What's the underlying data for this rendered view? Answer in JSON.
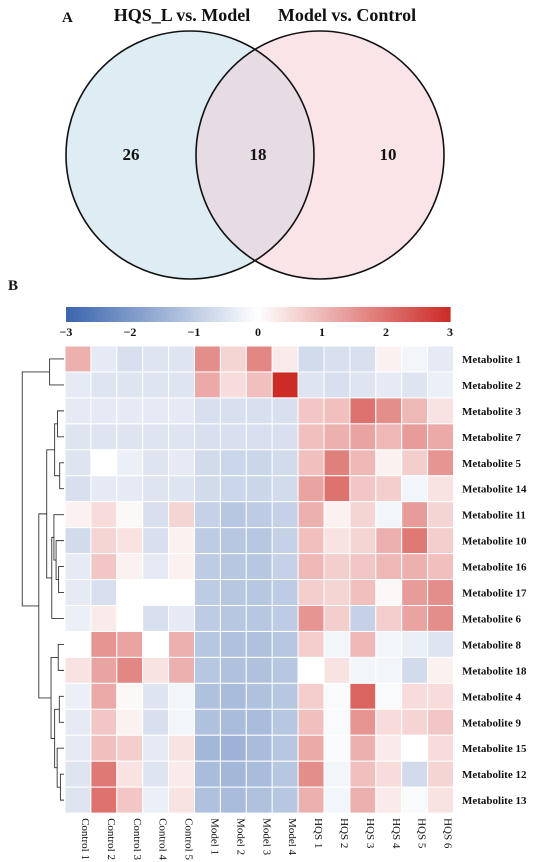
{
  "panel_labels": {
    "a": "A",
    "b": "B"
  },
  "venn": {
    "left_set": "HQS_L vs. Model",
    "right_set": "Model vs. Control",
    "left_only": "26",
    "overlap": "18",
    "right_only": "10",
    "left_color": "#deedf4",
    "right_color": "#fbe4e8",
    "overlap_color": "#e7dbe4"
  },
  "chart_data": [
    {
      "type": "venn",
      "sets": [
        "HQS_L vs. Model",
        "Model vs. Control"
      ],
      "values": {
        "left_only": 26,
        "overlap": 18,
        "right_only": 10
      }
    },
    {
      "type": "heatmap",
      "color_scale": {
        "min": -3,
        "max": 3,
        "ticks": [
          "-3",
          "-2",
          "-1",
          "0",
          "1",
          "2",
          "3"
        ],
        "low_color": "#3a64ad",
        "mid_color": "#ffffff",
        "high_color": "#cc2b26"
      },
      "columns": [
        "Control 1",
        "Control 2",
        "Control 3",
        "Control 4",
        "Control 5",
        "Model 1",
        "Model 2",
        "Model 3",
        "Model 4",
        "HQS 1",
        "HQS 2",
        "HQS 3",
        "HQS 4",
        "HQS 5",
        "HQS 6"
      ],
      "rows": [
        "Metabolite 1",
        "Metabolite 2",
        "Metabolite 3",
        "Metabolite 7",
        "Metabolite 5",
        "Metabolite 14",
        "Metabolite 11",
        "Metabolite 10",
        "Metabolite 16",
        "Metabolite 17",
        "Metabolite 6",
        "Metabolite 8",
        "Metabolite 18",
        "Metabolite 4",
        "Metabolite 9",
        "Metabolite 15",
        "Metabolite 12",
        "Metabolite 13"
      ],
      "values": [
        [
          1.1,
          -0.4,
          -0.6,
          -0.5,
          -0.5,
          1.6,
          0.6,
          1.7,
          0.3,
          -0.7,
          -0.6,
          -0.6,
          0.2,
          -0.2,
          -0.4
        ],
        [
          -0.4,
          -0.5,
          -0.5,
          -0.5,
          -0.5,
          1.2,
          0.5,
          0.9,
          3.0,
          -0.5,
          -0.6,
          -0.5,
          -0.4,
          -0.5,
          -0.3
        ],
        [
          -0.4,
          -0.4,
          -0.4,
          -0.4,
          -0.4,
          -0.6,
          -0.6,
          -0.6,
          -0.6,
          0.8,
          0.9,
          2.0,
          1.6,
          1.0,
          0.4
        ],
        [
          -0.5,
          -0.5,
          -0.5,
          -0.5,
          -0.5,
          -0.6,
          -0.6,
          -0.6,
          -0.6,
          0.9,
          1.1,
          1.3,
          1.0,
          1.4,
          1.2
        ],
        [
          -0.5,
          0.0,
          -0.3,
          -0.5,
          -0.4,
          -0.7,
          -0.8,
          -0.8,
          -0.7,
          0.9,
          1.8,
          1.0,
          0.2,
          0.7,
          1.5
        ],
        [
          -0.6,
          -0.4,
          -0.4,
          -0.5,
          -0.5,
          -0.7,
          -0.8,
          -0.8,
          -0.7,
          1.3,
          2.0,
          0.8,
          0.7,
          -0.2,
          0.4
        ],
        [
          0.2,
          0.5,
          0.1,
          -0.6,
          0.6,
          -0.9,
          -1.1,
          -1.0,
          -0.9,
          1.1,
          0.2,
          0.6,
          -0.2,
          1.4,
          0.6
        ],
        [
          -0.7,
          0.6,
          0.4,
          -0.6,
          0.2,
          -1.0,
          -1.1,
          -1.1,
          -0.9,
          0.9,
          0.4,
          0.6,
          1.1,
          1.9,
          0.7
        ],
        [
          -0.4,
          0.8,
          0.2,
          -0.4,
          0.2,
          -1.0,
          -1.1,
          -1.1,
          -0.9,
          1.0,
          0.7,
          0.8,
          1.0,
          1.1,
          0.9
        ],
        [
          -0.4,
          -0.6,
          0.0,
          0.0,
          0.0,
          -1.0,
          -1.1,
          -1.1,
          -1.0,
          0.7,
          0.6,
          0.9,
          0.1,
          1.4,
          1.6
        ],
        [
          -0.3,
          0.3,
          0.0,
          -0.6,
          -0.4,
          -1.0,
          -1.1,
          -1.1,
          -1.0,
          1.5,
          0.7,
          -0.9,
          0.7,
          1.3,
          1.6
        ],
        [
          0.0,
          1.5,
          1.3,
          0.0,
          1.1,
          -1.1,
          -1.2,
          -1.2,
          -1.1,
          0.7,
          -0.2,
          1.0,
          -0.2,
          -0.3,
          -0.5
        ],
        [
          0.4,
          1.3,
          1.7,
          0.4,
          1.1,
          -1.1,
          -1.2,
          -1.2,
          -1.1,
          0.0,
          0.4,
          -0.2,
          -0.2,
          -0.7,
          0.2
        ],
        [
          -0.3,
          1.2,
          0.1,
          -0.5,
          -0.2,
          -1.2,
          -1.3,
          -1.2,
          -1.1,
          0.7,
          -0.1,
          2.2,
          -0.1,
          0.5,
          0.5
        ],
        [
          -0.4,
          0.8,
          0.2,
          -0.6,
          -0.2,
          -1.2,
          -1.3,
          -1.3,
          -1.1,
          0.9,
          -0.1,
          1.5,
          0.5,
          0.6,
          0.8
        ],
        [
          -0.4,
          0.9,
          0.7,
          -0.4,
          0.4,
          -1.4,
          -1.5,
          -1.3,
          -1.1,
          1.2,
          -0.1,
          1.1,
          0.3,
          0.0,
          0.5
        ],
        [
          -0.5,
          1.9,
          0.4,
          -0.5,
          0.3,
          -1.3,
          -1.4,
          -1.3,
          -1.1,
          1.6,
          -0.2,
          0.9,
          0.5,
          -0.7,
          0.6
        ],
        [
          -0.5,
          2.0,
          0.8,
          -0.3,
          0.4,
          -1.2,
          -1.3,
          -1.2,
          -1.1,
          1.1,
          -0.2,
          1.1,
          0.3,
          -0.1,
          0.4
        ]
      ],
      "row_dendrogram": "left",
      "grid": true
    }
  ]
}
